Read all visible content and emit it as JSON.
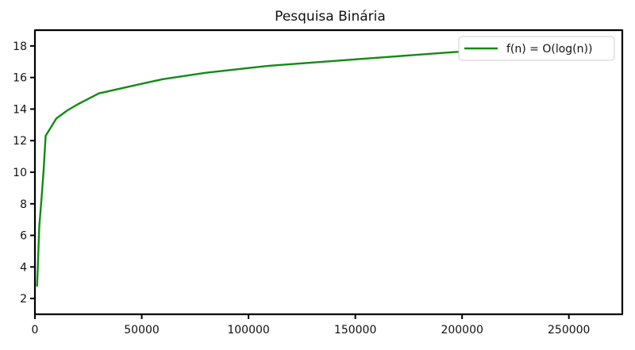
{
  "chart_data": {
    "type": "line",
    "title": "Pesquisa Binária",
    "xlabel": "",
    "ylabel": "",
    "xlim": [
      0,
      275000
    ],
    "ylim": [
      1,
      19
    ],
    "xticks": [
      0,
      50000,
      100000,
      150000,
      200000,
      250000
    ],
    "xtick_labels": [
      "0",
      "50000",
      "100000",
      "150000",
      "200000",
      "250000"
    ],
    "yticks": [
      2,
      4,
      6,
      8,
      10,
      12,
      14,
      16,
      18
    ],
    "ytick_labels": [
      "2",
      "4",
      "6",
      "8",
      "10",
      "12",
      "14",
      "16",
      "18"
    ],
    "grid": false,
    "legend_position": "top-right",
    "colors": {
      "series": "#138a13",
      "axes": "#000000"
    },
    "series": [
      {
        "name": "f(n) = O(log(n))",
        "points": [
          [
            1000,
            2.8
          ],
          [
            1500,
            4.5
          ],
          [
            2000,
            6.5
          ],
          [
            3000,
            8.2
          ],
          [
            4000,
            10.0
          ],
          [
            5000,
            12.3
          ],
          [
            10000,
            13.4
          ],
          [
            15000,
            13.9
          ],
          [
            20000,
            14.3
          ],
          [
            30000,
            15.0
          ],
          [
            40000,
            15.3
          ],
          [
            50000,
            15.6
          ],
          [
            60000,
            15.9
          ],
          [
            70000,
            16.1
          ],
          [
            80000,
            16.3
          ],
          [
            90000,
            16.45
          ],
          [
            100000,
            16.6
          ],
          [
            110000,
            16.75
          ],
          [
            120000,
            16.85
          ],
          [
            130000,
            16.95
          ],
          [
            140000,
            17.05
          ],
          [
            150000,
            17.15
          ],
          [
            160000,
            17.25
          ],
          [
            170000,
            17.35
          ],
          [
            180000,
            17.45
          ],
          [
            190000,
            17.55
          ],
          [
            200000,
            17.65
          ],
          [
            210000,
            17.7
          ]
        ]
      }
    ]
  }
}
